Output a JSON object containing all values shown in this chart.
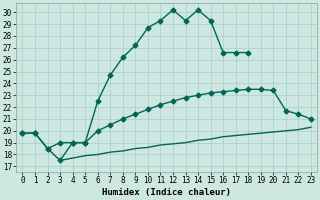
{
  "title": "",
  "xlabel": "Humidex (Indice chaleur)",
  "bg_color": "#cce8e0",
  "grid_color": "#aacccc",
  "line_color": "#006655",
  "xlim": [
    -0.5,
    23.5
  ],
  "ylim": [
    16.5,
    30.8
  ],
  "xticks": [
    0,
    1,
    2,
    3,
    4,
    5,
    6,
    7,
    8,
    9,
    10,
    11,
    12,
    13,
    14,
    15,
    16,
    17,
    18,
    19,
    20,
    21,
    22,
    23
  ],
  "yticks": [
    17,
    18,
    19,
    20,
    21,
    22,
    23,
    24,
    25,
    26,
    27,
    28,
    29,
    30
  ],
  "line1_x": [
    0,
    1,
    2,
    3,
    4,
    5,
    6,
    7,
    8,
    9,
    10,
    11,
    12,
    13,
    14,
    15,
    16,
    17,
    18
  ],
  "line1_y": [
    19.8,
    19.8,
    18.5,
    17.5,
    19.0,
    19.0,
    22.5,
    24.7,
    26.2,
    27.2,
    28.7,
    29.3,
    30.2,
    29.3,
    30.2,
    29.3,
    26.6,
    26.6,
    26.6
  ],
  "line2_x": [
    0,
    1,
    2,
    3,
    4,
    5,
    6,
    7,
    8,
    9,
    10,
    11,
    12,
    13,
    14,
    15,
    16,
    17,
    18,
    19,
    20,
    21,
    22,
    23
  ],
  "line2_y": [
    19.8,
    19.8,
    18.5,
    19.0,
    19.0,
    19.0,
    20.0,
    20.5,
    21.0,
    21.4,
    21.8,
    22.2,
    22.5,
    22.8,
    23.0,
    23.2,
    23.3,
    23.4,
    23.5,
    23.5,
    23.4,
    21.7,
    21.4,
    21.0
  ],
  "line3_x": [
    3,
    4,
    5,
    6,
    7,
    8,
    9,
    10,
    11,
    12,
    13,
    14,
    15,
    16,
    17,
    18,
    19,
    20,
    21,
    22,
    23
  ],
  "line3_y": [
    17.5,
    17.7,
    17.9,
    18.0,
    18.2,
    18.3,
    18.5,
    18.6,
    18.8,
    18.9,
    19.0,
    19.2,
    19.3,
    19.5,
    19.6,
    19.7,
    19.8,
    19.9,
    20.0,
    20.1,
    20.3
  ],
  "marker_size": 2.5,
  "line_width": 1.0,
  "tick_fontsize": 5.5,
  "xlabel_fontsize": 6.5
}
